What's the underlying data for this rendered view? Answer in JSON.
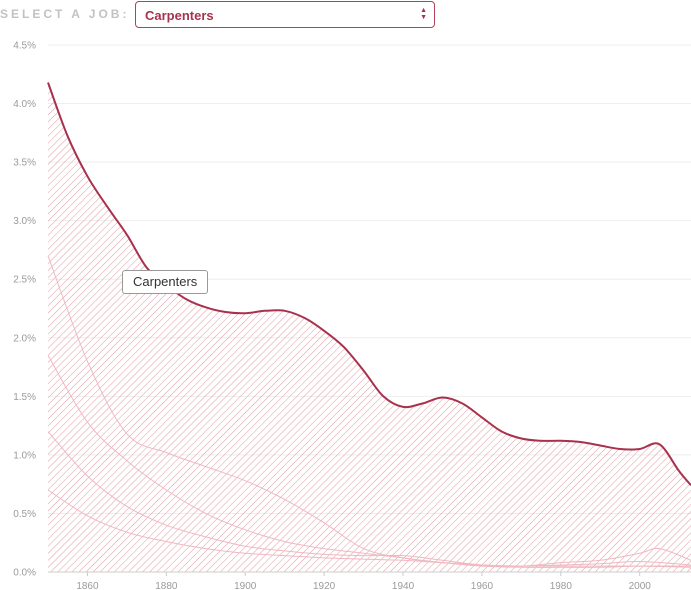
{
  "header": {
    "select_label": "SELECT A JOB:",
    "selected_job": "Carpenters"
  },
  "tooltip": {
    "text": "Carpenters"
  },
  "colors": {
    "accent": "#a8324e",
    "hatch": "#e09aa4",
    "faint_lines": "#f0b8c0",
    "grid": "#eeeeee"
  },
  "chart_data": {
    "type": "area",
    "title": "",
    "xlabel": "",
    "ylabel": "",
    "xlim": [
      1850,
      2013
    ],
    "ylim": [
      0,
      4.5
    ],
    "x_ticks": [
      1860,
      1880,
      1900,
      1920,
      1940,
      1960,
      1980,
      2000
    ],
    "y_ticks": [
      "0.0%",
      "0.5%",
      "1.0%",
      "1.5%",
      "2.0%",
      "2.5%",
      "3.0%",
      "3.5%",
      "4.0%",
      "4.5%"
    ],
    "grid": true,
    "highlight": "Carpenters",
    "series": [
      {
        "name": "Carpenters",
        "x": [
          1850,
          1855,
          1860,
          1865,
          1870,
          1875,
          1880,
          1885,
          1890,
          1895,
          1900,
          1905,
          1910,
          1915,
          1920,
          1925,
          1930,
          1935,
          1940,
          1945,
          1950,
          1955,
          1960,
          1965,
          1970,
          1975,
          1980,
          1985,
          1990,
          1995,
          2000,
          2005,
          2010,
          2013
        ],
        "values": [
          4.18,
          3.72,
          3.38,
          3.12,
          2.88,
          2.6,
          2.45,
          2.33,
          2.26,
          2.22,
          2.21,
          2.23,
          2.23,
          2.17,
          2.06,
          1.92,
          1.72,
          1.5,
          1.41,
          1.44,
          1.49,
          1.44,
          1.32,
          1.2,
          1.14,
          1.12,
          1.12,
          1.11,
          1.08,
          1.05,
          1.05,
          1.09,
          0.86,
          0.74
        ]
      },
      {
        "x": [
          1850,
          1860,
          1870,
          1880,
          1890,
          1900,
          1910,
          1920,
          1930,
          1940,
          1950,
          1960,
          1970,
          1980,
          1990,
          2000,
          2005,
          2013
        ],
        "values": [
          2.7,
          1.8,
          1.18,
          1.02,
          0.9,
          0.78,
          0.62,
          0.42,
          0.2,
          0.12,
          0.08,
          0.06,
          0.05,
          0.08,
          0.1,
          0.16,
          0.2,
          0.1
        ]
      },
      {
        "x": [
          1850,
          1860,
          1870,
          1880,
          1890,
          1900,
          1910,
          1920,
          1930,
          1940,
          1950,
          1960,
          1970,
          1980,
          1990,
          2000,
          2013
        ],
        "values": [
          1.85,
          1.28,
          0.95,
          0.7,
          0.5,
          0.36,
          0.26,
          0.2,
          0.16,
          0.12,
          0.08,
          0.05,
          0.04,
          0.04,
          0.04,
          0.05,
          0.05
        ]
      },
      {
        "x": [
          1850,
          1860,
          1870,
          1880,
          1890,
          1900,
          1910,
          1920,
          1930,
          1940,
          1950,
          1960,
          1970,
          1980,
          1990,
          2000,
          2013
        ],
        "values": [
          1.2,
          0.82,
          0.56,
          0.4,
          0.3,
          0.22,
          0.18,
          0.15,
          0.14,
          0.14,
          0.1,
          0.06,
          0.05,
          0.06,
          0.07,
          0.09,
          0.06
        ]
      },
      {
        "x": [
          1850,
          1860,
          1870,
          1880,
          1890,
          1900,
          1910,
          1920,
          1930,
          1940,
          1950,
          1960,
          1970,
          1980,
          1990,
          2000,
          2013
        ],
        "values": [
          0.7,
          0.48,
          0.34,
          0.26,
          0.2,
          0.16,
          0.14,
          0.12,
          0.11,
          0.1,
          0.08,
          0.06,
          0.05,
          0.05,
          0.05,
          0.05,
          0.04
        ]
      }
    ]
  }
}
